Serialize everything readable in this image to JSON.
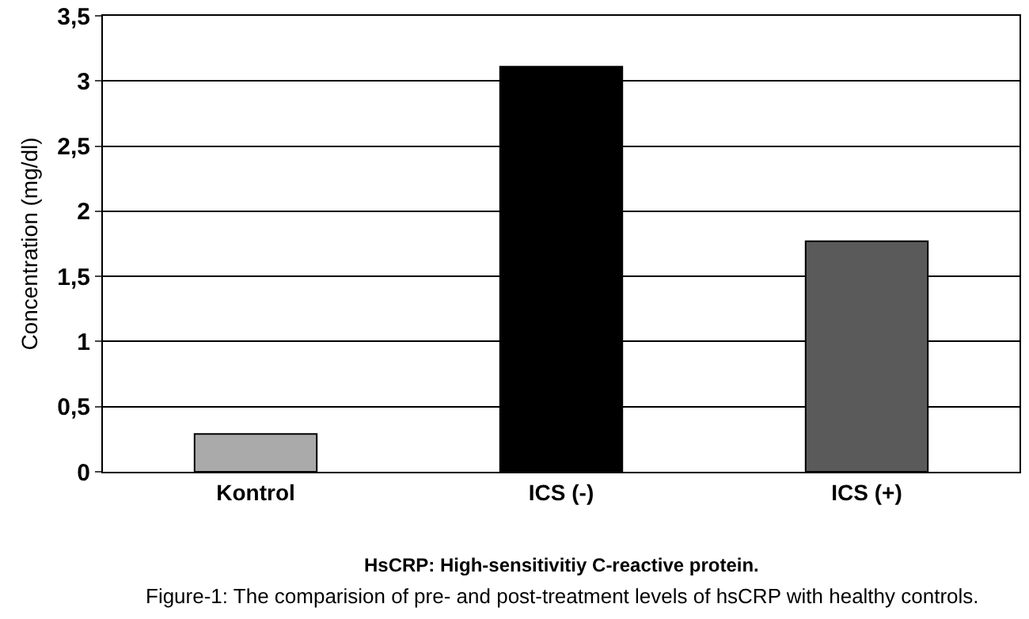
{
  "chart_data": {
    "type": "bar",
    "ylabel": "Concentration (mg/dl)",
    "categories": [
      "Kontrol",
      "ICS (-)",
      "ICS (+)"
    ],
    "values": [
      0.29,
      3.11,
      1.77
    ],
    "colors": [
      "#aaaaaa",
      "#000000",
      "#5a5a5a"
    ],
    "ylim": [
      0,
      3.5
    ],
    "yticks": [
      0,
      {
        "value": 0.5,
        "label": "0,5"
      },
      1,
      {
        "value": 1.5,
        "label": "1,5"
      },
      2,
      {
        "value": 2.5,
        "label": "2,5"
      },
      3,
      {
        "value": 3.5,
        "label": "3,5"
      }
    ],
    "grid": "y",
    "annotations": [
      "HsCRP: High-sensitivitiy C-reactive protein.",
      "Figure-1: The comparision of pre- and post-treatment levels of hsCRP with healthy controls."
    ]
  }
}
